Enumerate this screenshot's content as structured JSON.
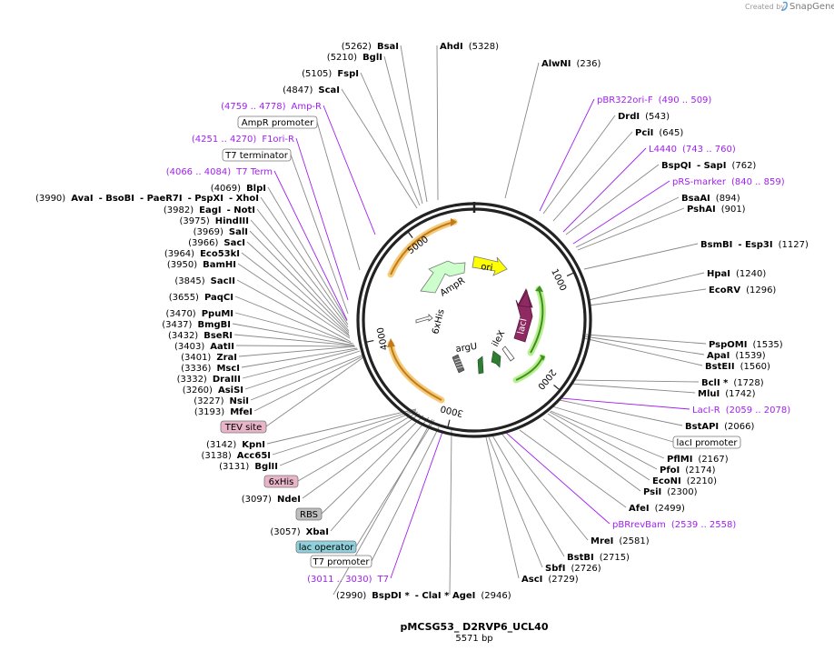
{
  "brand": {
    "prefix": "Created by",
    "name": "SnapGene"
  },
  "plasmid": {
    "name": "pMCSG53_ D2RVP6_UCL40",
    "length_label": "5571 bp",
    "length": 5571
  },
  "axis_ticks": [
    {
      "pos": 1000,
      "label": "1000"
    },
    {
      "pos": 2000,
      "label": "2000"
    },
    {
      "pos": 3000,
      "label": "3000"
    },
    {
      "pos": 4000,
      "label": "4000"
    },
    {
      "pos": 5000,
      "label": "5000"
    }
  ],
  "features": [
    {
      "name": "ori",
      "start": 700,
      "end": 1290,
      "color": "#ffff00",
      "type": "arrow"
    },
    {
      "name": "lacI",
      "start": 1090,
      "end": 1790,
      "color": "#8e2a61",
      "type": "arrow"
    },
    {
      "name": "AmpR",
      "start": 4960,
      "end": 4210,
      "color": "#ccffcc",
      "type": "arrow"
    },
    {
      "name": "6xHis",
      "start": 3540,
      "end": 3430,
      "color": "#ffffff",
      "type": "arrow"
    },
    {
      "name": "argU",
      "start": 2830,
      "end": 2760,
      "color": "#555555",
      "type": "hatched"
    },
    {
      "name": "ileX",
      "start": 2580,
      "end": 2520,
      "color": "#2e7d32",
      "type": "arrow"
    }
  ],
  "labels": [
    {
      "id": "bsai",
      "segments": [
        {
          "t": "(5262)",
          "s": "n"
        },
        {
          "t": "BsaI",
          "s": "b"
        }
      ]
    },
    {
      "id": "ahdi",
      "segments": [
        {
          "t": "AhdI",
          "s": "b"
        },
        {
          "t": "(5328)",
          "s": "n"
        }
      ]
    },
    {
      "id": "bgli",
      "segments": [
        {
          "t": "(5210)",
          "s": "n"
        },
        {
          "t": "BglI",
          "s": "b"
        }
      ]
    },
    {
      "id": "alwni",
      "segments": [
        {
          "t": "AlwNI",
          "s": "b"
        },
        {
          "t": "(236)",
          "s": "n"
        }
      ]
    },
    {
      "id": "fspi",
      "segments": [
        {
          "t": "(5105)",
          "s": "n"
        },
        {
          "t": "FspI",
          "s": "b"
        }
      ]
    },
    {
      "id": "scai",
      "segments": [
        {
          "t": "(4847)",
          "s": "n"
        },
        {
          "t": "ScaI",
          "s": "b"
        }
      ]
    },
    {
      "id": "pbr322ori",
      "segments": [
        {
          "t": "pBR322ori-F",
          "s": "p"
        },
        {
          "t": "(490 .. 509)",
          "s": "p"
        }
      ]
    },
    {
      "id": "ampr-primer",
      "segments": [
        {
          "t": "(4759 .. 4778)",
          "s": "p"
        },
        {
          "t": "Amp-R",
          "s": "p"
        }
      ]
    },
    {
      "id": "drdi",
      "segments": [
        {
          "t": "DrdI",
          "s": "b"
        },
        {
          "t": "(543)",
          "s": "n"
        }
      ]
    },
    {
      "id": "pcii",
      "segments": [
        {
          "t": "PciI",
          "s": "b"
        },
        {
          "t": "(645)",
          "s": "n"
        }
      ]
    },
    {
      "id": "f1ori",
      "segments": [
        {
          "t": "(4251 .. 4270)",
          "s": "p"
        },
        {
          "t": "F1ori-R",
          "s": "p"
        }
      ]
    },
    {
      "id": "l4440",
      "segments": [
        {
          "t": "L4440",
          "s": "p"
        },
        {
          "t": "(743 .. 760)",
          "s": "p"
        }
      ]
    },
    {
      "id": "bspqi",
      "segments": [
        {
          "t": "BspQI",
          "s": "b"
        },
        {
          "t": "- SapI",
          "s": "b"
        },
        {
          "t": "(762)",
          "s": "n"
        }
      ]
    },
    {
      "id": "t7term",
      "segments": [
        {
          "t": "(4066 .. 4084)",
          "s": "p"
        },
        {
          "t": "T7 Term",
          "s": "p"
        }
      ]
    },
    {
      "id": "prsmarker",
      "segments": [
        {
          "t": "pRS-marker",
          "s": "p"
        },
        {
          "t": "(840 .. 859)",
          "s": "p"
        }
      ]
    },
    {
      "id": "blpi",
      "segments": [
        {
          "t": "(4069)",
          "s": "n"
        },
        {
          "t": "BlpI",
          "s": "b"
        }
      ]
    },
    {
      "id": "bsaai",
      "segments": [
        {
          "t": "BsaAI",
          "s": "b"
        },
        {
          "t": "(894)",
          "s": "n"
        }
      ]
    },
    {
      "id": "aval",
      "segments": [
        {
          "t": "(3990)",
          "s": "n"
        },
        {
          "t": "AvaI",
          "s": "b"
        },
        {
          "t": "- BsoBI",
          "s": "b"
        },
        {
          "t": "- PaeR7I",
          "s": "b"
        },
        {
          "t": "- PspXI",
          "s": "b"
        },
        {
          "t": "- XhoI",
          "s": "b"
        }
      ]
    },
    {
      "id": "pshai",
      "segments": [
        {
          "t": "PshAI",
          "s": "b"
        },
        {
          "t": "(901)",
          "s": "n"
        }
      ]
    },
    {
      "id": "eagi",
      "segments": [
        {
          "t": "(3982)",
          "s": "n"
        },
        {
          "t": "EagI",
          "s": "b"
        },
        {
          "t": "- NotI",
          "s": "b"
        }
      ]
    },
    {
      "id": "hindiii",
      "segments": [
        {
          "t": "(3975)",
          "s": "n"
        },
        {
          "t": "HindIII",
          "s": "b"
        }
      ]
    },
    {
      "id": "sali",
      "segments": [
        {
          "t": "(3969)",
          "s": "n"
        },
        {
          "t": "SalI",
          "s": "b"
        }
      ]
    },
    {
      "id": "bsmbi",
      "segments": [
        {
          "t": "BsmBI",
          "s": "b"
        },
        {
          "t": "- Esp3I",
          "s": "b"
        },
        {
          "t": "(1127)",
          "s": "n"
        }
      ]
    },
    {
      "id": "saci",
      "segments": [
        {
          "t": "(3966)",
          "s": "n"
        },
        {
          "t": "SacI",
          "s": "b"
        }
      ]
    },
    {
      "id": "eco53ki",
      "segments": [
        {
          "t": "(3964)",
          "s": "n"
        },
        {
          "t": "Eco53kI",
          "s": "b"
        }
      ]
    },
    {
      "id": "bamhi",
      "segments": [
        {
          "t": "(3950)",
          "s": "n"
        },
        {
          "t": "BamHI",
          "s": "b"
        }
      ]
    },
    {
      "id": "hpai",
      "segments": [
        {
          "t": "HpaI",
          "s": "b"
        },
        {
          "t": "(1240)",
          "s": "n"
        }
      ]
    },
    {
      "id": "sacii",
      "segments": [
        {
          "t": "(3845)",
          "s": "n"
        },
        {
          "t": "SacII",
          "s": "b"
        }
      ]
    },
    {
      "id": "ecorv",
      "segments": [
        {
          "t": "EcoRV",
          "s": "b"
        },
        {
          "t": "(1296)",
          "s": "n"
        }
      ]
    },
    {
      "id": "paqci",
      "segments": [
        {
          "t": "(3655)",
          "s": "n"
        },
        {
          "t": "PaqCI",
          "s": "b"
        }
      ]
    },
    {
      "id": "ppumi",
      "segments": [
        {
          "t": "(3470)",
          "s": "n"
        },
        {
          "t": "PpuMI",
          "s": "b"
        }
      ]
    },
    {
      "id": "bmgbi",
      "segments": [
        {
          "t": "(3437)",
          "s": "n"
        },
        {
          "t": "BmgBI",
          "s": "b"
        }
      ]
    },
    {
      "id": "bseri",
      "segments": [
        {
          "t": "(3432)",
          "s": "n"
        },
        {
          "t": "BseRI",
          "s": "b"
        }
      ]
    },
    {
      "id": "pspomi",
      "segments": [
        {
          "t": "PspOMI",
          "s": "b"
        },
        {
          "t": "(1535)",
          "s": "n"
        }
      ]
    },
    {
      "id": "aatii",
      "segments": [
        {
          "t": "(3403)",
          "s": "n"
        },
        {
          "t": "AatII",
          "s": "b"
        }
      ]
    },
    {
      "id": "apai",
      "segments": [
        {
          "t": "ApaI",
          "s": "b"
        },
        {
          "t": "(1539)",
          "s": "n"
        }
      ]
    },
    {
      "id": "zrai",
      "segments": [
        {
          "t": "(3401)",
          "s": "n"
        },
        {
          "t": "ZraI",
          "s": "b"
        }
      ]
    },
    {
      "id": "bsteii",
      "segments": [
        {
          "t": "BstEII",
          "s": "b"
        },
        {
          "t": "(1560)",
          "s": "n"
        }
      ]
    },
    {
      "id": "msci",
      "segments": [
        {
          "t": "(3336)",
          "s": "n"
        },
        {
          "t": "MscI",
          "s": "b"
        }
      ]
    },
    {
      "id": "draiii",
      "segments": [
        {
          "t": "(3332)",
          "s": "n"
        },
        {
          "t": "DraIII",
          "s": "b"
        }
      ]
    },
    {
      "id": "bcli",
      "segments": [
        {
          "t": "BclI *",
          "s": "b"
        },
        {
          "t": "(1728)",
          "s": "n"
        }
      ]
    },
    {
      "id": "asisi",
      "segments": [
        {
          "t": "(3260)",
          "s": "n"
        },
        {
          "t": "AsiSI",
          "s": "b"
        }
      ]
    },
    {
      "id": "mlui",
      "segments": [
        {
          "t": "MluI",
          "s": "b"
        },
        {
          "t": "(1742)",
          "s": "n"
        }
      ]
    },
    {
      "id": "nsii",
      "segments": [
        {
          "t": "(3227)",
          "s": "n"
        },
        {
          "t": "NsiI",
          "s": "b"
        }
      ]
    },
    {
      "id": "laci-r",
      "segments": [
        {
          "t": "LacI-R",
          "s": "p"
        },
        {
          "t": "(2059 .. 2078)",
          "s": "p"
        }
      ]
    },
    {
      "id": "mfei",
      "segments": [
        {
          "t": "(3193)",
          "s": "n"
        },
        {
          "t": "MfeI",
          "s": "b"
        }
      ]
    },
    {
      "id": "bstapi",
      "segments": [
        {
          "t": "BstAPI",
          "s": "b"
        },
        {
          "t": "(2066)",
          "s": "n"
        }
      ]
    },
    {
      "id": "kpni",
      "segments": [
        {
          "t": "(3142)",
          "s": "n"
        },
        {
          "t": "KpnI",
          "s": "b"
        }
      ]
    },
    {
      "id": "acc65i",
      "segments": [
        {
          "t": "(3138)",
          "s": "n"
        },
        {
          "t": "Acc65I",
          "s": "b"
        }
      ]
    },
    {
      "id": "pflmi",
      "segments": [
        {
          "t": "PflMI",
          "s": "b"
        },
        {
          "t": "(2167)",
          "s": "n"
        }
      ]
    },
    {
      "id": "bglii",
      "segments": [
        {
          "t": "(3131)",
          "s": "n"
        },
        {
          "t": "BglII",
          "s": "b"
        }
      ]
    },
    {
      "id": "pfoi",
      "segments": [
        {
          "t": "PfoI",
          "s": "b"
        },
        {
          "t": "(2174)",
          "s": "n"
        }
      ]
    },
    {
      "id": "econi",
      "segments": [
        {
          "t": "EcoNI",
          "s": "b"
        },
        {
          "t": "(2210)",
          "s": "n"
        }
      ]
    },
    {
      "id": "psii",
      "segments": [
        {
          "t": "PsiI",
          "s": "b"
        },
        {
          "t": "(2300)",
          "s": "n"
        }
      ]
    },
    {
      "id": "ndei",
      "segments": [
        {
          "t": "(3097)",
          "s": "n"
        },
        {
          "t": "NdeI",
          "s": "b"
        }
      ]
    },
    {
      "id": "afei",
      "segments": [
        {
          "t": "AfeI",
          "s": "b"
        },
        {
          "t": "(2499)",
          "s": "n"
        }
      ]
    },
    {
      "id": "pbrrevbam",
      "segments": [
        {
          "t": "pBRrevBam",
          "s": "p"
        },
        {
          "t": "(2539 .. 2558)",
          "s": "p"
        }
      ]
    },
    {
      "id": "xbai",
      "segments": [
        {
          "t": "(3057)",
          "s": "n"
        },
        {
          "t": "XbaI",
          "s": "b"
        }
      ]
    },
    {
      "id": "mrei",
      "segments": [
        {
          "t": "MreI",
          "s": "b"
        },
        {
          "t": "(2581)",
          "s": "n"
        }
      ]
    },
    {
      "id": "bstbi",
      "segments": [
        {
          "t": "BstBI",
          "s": "b"
        },
        {
          "t": "(2715)",
          "s": "n"
        }
      ]
    },
    {
      "id": "sbfi",
      "segments": [
        {
          "t": "SbfI",
          "s": "b"
        },
        {
          "t": "(2726)",
          "s": "n"
        }
      ]
    },
    {
      "id": "t7-primer",
      "segments": [
        {
          "t": "(3011 .. 3030)",
          "s": "p"
        },
        {
          "t": "T7",
          "s": "p"
        }
      ]
    },
    {
      "id": "asci",
      "segments": [
        {
          "t": "AscI",
          "s": "b"
        },
        {
          "t": "(2729)",
          "s": "n"
        }
      ]
    },
    {
      "id": "bspdi",
      "segments": [
        {
          "t": "(2990)",
          "s": "n"
        },
        {
          "t": "BspDI *",
          "s": "b"
        },
        {
          "t": "- ClaI *",
          "s": "b"
        }
      ]
    },
    {
      "id": "agei",
      "segments": [
        {
          "t": "AgeI",
          "s": "b"
        },
        {
          "t": "(2946)",
          "s": "n"
        }
      ]
    }
  ],
  "boxes": [
    {
      "id": "ampr-promoter",
      "text": "AmpR promoter",
      "fill": "#ffffff"
    },
    {
      "id": "t7-terminator",
      "text": "T7 terminator",
      "fill": "#ffffff"
    },
    {
      "id": "tev-site",
      "text": "TEV site",
      "fill": "#e8b4c8"
    },
    {
      "id": "laci-promoter",
      "text": "lacI promoter",
      "fill": "#ffffff"
    },
    {
      "id": "6xhis-box",
      "text": "6xHis",
      "fill": "#e8b4c8"
    },
    {
      "id": "rbs",
      "text": "RBS",
      "fill": "#bdbdbd"
    },
    {
      "id": "lac-operator",
      "text": "lac operator",
      "fill": "#8fd0dc"
    },
    {
      "id": "t7-promoter",
      "text": "T7 promoter",
      "fill": "#ffffff"
    }
  ]
}
